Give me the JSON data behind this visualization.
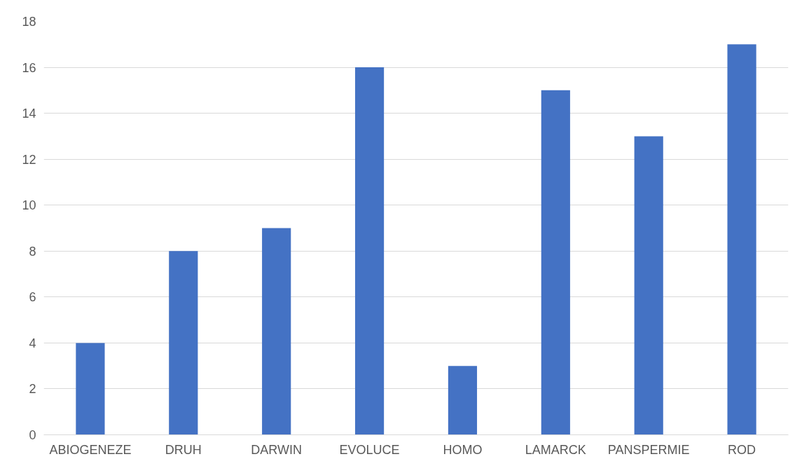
{
  "chart_data": {
    "type": "bar",
    "categories": [
      "ABIOGENEZE",
      "DRUH",
      "DARWIN",
      "EVOLUCE",
      "HOMO",
      "LAMARCK",
      "PANSPERMIE",
      "ROD"
    ],
    "values": [
      4,
      8,
      9,
      16,
      3,
      15,
      13,
      17
    ],
    "color": "#4472c4",
    "ylim": [
      0,
      18
    ],
    "yticks": [
      0,
      2,
      4,
      6,
      8,
      10,
      12,
      14,
      16,
      18
    ],
    "grid": "y"
  }
}
